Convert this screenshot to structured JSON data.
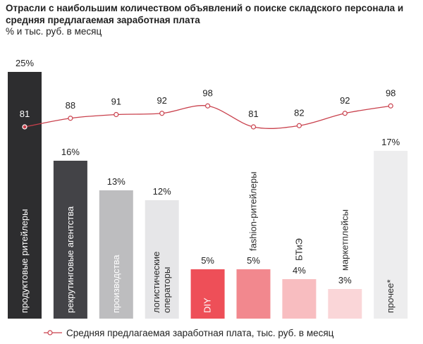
{
  "chart_data": {
    "type": "bar",
    "title": "Отрасли с наибольшим количеством объявлений о поиске складского персонала и средняя предлагаемая заработная плата",
    "subtitle": "% и тыс. руб. в месяц",
    "categories": [
      "продуктовые ритейлеры",
      "рекрутинговые агентства",
      "производства",
      "логистические операторы",
      "DIY",
      "fashion-ритейлеры",
      "БТиЭ",
      "маркетплейсы",
      "прочее*"
    ],
    "category_lines": [
      [
        "продуктовые ритейлеры"
      ],
      [
        "рекрутинговые агентства"
      ],
      [
        "производства"
      ],
      [
        "логистические",
        "операторы"
      ],
      [
        "DIY"
      ],
      [
        "fashion-ритейлеры"
      ],
      [
        "БТиЭ"
      ],
      [
        "маркетплейсы"
      ],
      [
        "прочее*"
      ]
    ],
    "series": [
      {
        "type": "bar",
        "values": [
          25,
          16,
          13,
          12,
          5,
          5,
          4,
          3,
          17
        ],
        "value_labels": [
          "25%",
          "16%",
          "13%",
          "12%",
          "5%",
          "5%",
          "4%",
          "3%",
          "17%"
        ],
        "colors": [
          "#2d2d2f",
          "#434347",
          "#bdbdbf",
          "#e6e6e8",
          "#ee4f58",
          "#f2888e",
          "#f8bdc0",
          "#fad6d8",
          "#ededee"
        ]
      },
      {
        "type": "line",
        "name": "Средняя предлагаемая заработная плата, тыс. руб. в месяц",
        "values": [
          81,
          88,
          91,
          92,
          98,
          81,
          82,
          92,
          98
        ],
        "color": "#c9404c"
      }
    ],
    "legend": {
      "position": "bottom",
      "label": "Средняя предлагаемая заработная плата, тыс. руб. в месяц"
    },
    "grid": false
  }
}
